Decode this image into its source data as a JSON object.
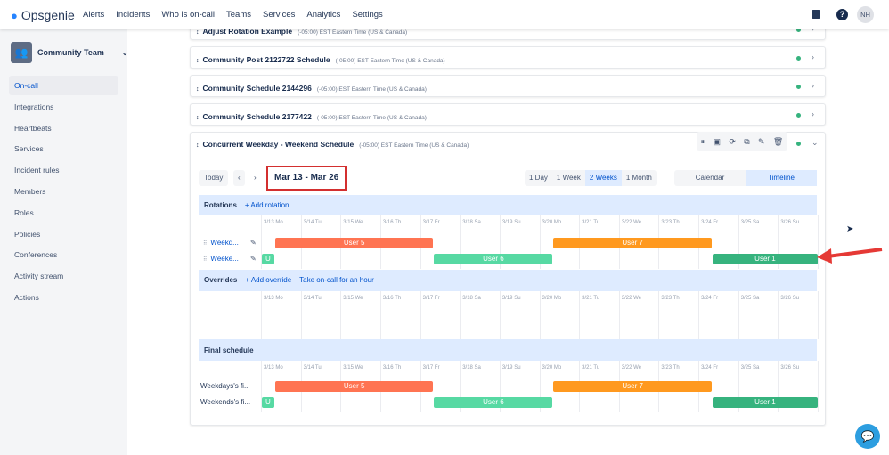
{
  "topbar": {
    "logo": "Opsgenie",
    "nav": [
      "Alerts",
      "Incidents",
      "Who is on-call",
      "Teams",
      "Services",
      "Analytics",
      "Settings"
    ],
    "avatar": "NH"
  },
  "sidebar": {
    "team": "Community Team",
    "items": [
      "On-call",
      "Integrations",
      "Heartbeats",
      "Services",
      "Incident rules",
      "Members",
      "Roles",
      "Policies",
      "Conferences",
      "Activity stream",
      "Actions"
    ],
    "active": 0
  },
  "schedules": [
    {
      "name": "Adjust Rotation Example",
      "tz": "(-05:00) EST Eastern Time (US & Canada)"
    },
    {
      "name": "Community Post 2122722 Schedule",
      "tz": "(-05:00) EST Eastern Time (US & Canada)"
    },
    {
      "name": "Community Schedule 2144296",
      "tz": "(-05:00) EST Eastern Time (US & Canada)"
    },
    {
      "name": "Community Schedule 2177422",
      "tz": "(-05:00) EST Eastern Time (US & Canada)"
    },
    {
      "name": "Concurrent Weekday - Weekend Schedule",
      "tz": "(-05:00) EST Eastern Time (US & Canada)"
    }
  ],
  "toolbar": {
    "today": "Today",
    "prev": "‹",
    "next": "›",
    "range": "Mar 13 - Mar 26",
    "views": [
      "1 Day",
      "1 Week",
      "2 Weeks",
      "1 Month"
    ],
    "active_view": 2,
    "modes": [
      "Calendar",
      "Timeline"
    ],
    "active_mode": 1
  },
  "rotations": {
    "title": "Rotations",
    "add": "+ Add rotation",
    "rows": [
      "Weekd...",
      "Weeke..."
    ]
  },
  "overrides": {
    "title": "Overrides",
    "add": "+ Add override",
    "take": "Take on-call for an hour"
  },
  "final": {
    "title": "Final schedule",
    "rows": [
      "Weekdays's fi...",
      "Weekends's fi..."
    ]
  },
  "days": [
    "3/13 Mo",
    "3/14 Tu",
    "3/15 We",
    "3/16 Th",
    "3/17 Fr",
    "3/18 Sa",
    "3/19 Su",
    "3/20 Mo",
    "3/21 Tu",
    "3/22 We",
    "3/23 Th",
    "3/24 Fr",
    "3/25 Sa",
    "3/26 Su"
  ],
  "shifts": [
    {
      "row": 0,
      "user": "User 5",
      "start": "3/13 08:00",
      "end": "3/17 08:00",
      "color": "#ff7452"
    },
    {
      "row": 0,
      "user": "User 7",
      "start": "3/20 08:00",
      "end": "3/24 08:00",
      "color": "#ff991f"
    },
    {
      "row": 1,
      "user": "U",
      "start": "3/13 00:00",
      "end": "3/13 08:00",
      "color": "#57d9a3"
    },
    {
      "row": 1,
      "user": "User 6",
      "start": "3/17 08:00",
      "end": "3/20 08:00",
      "color": "#57d9a3"
    },
    {
      "row": 1,
      "user": "User 1",
      "start": "3/24 08:00",
      "end": "3/27 00:00",
      "color": "#36b37e"
    }
  ],
  "colors": {
    "accent": "#0052cc",
    "highlight_box": "#d32f2f",
    "arrow": "#e53935"
  }
}
